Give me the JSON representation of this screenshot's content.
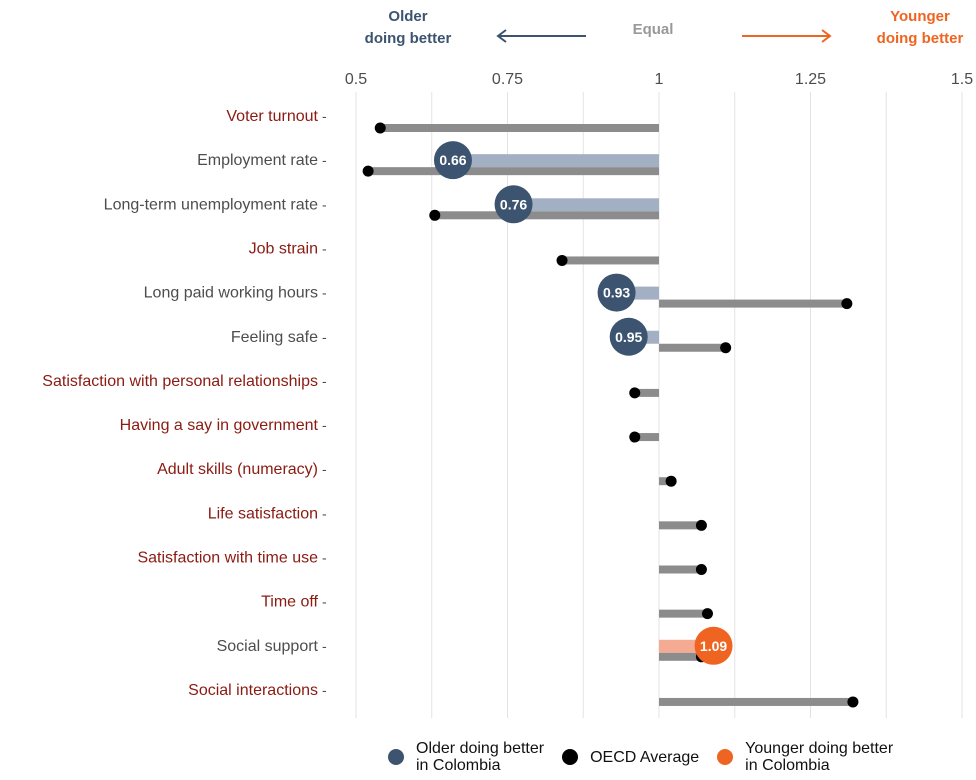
{
  "header": {
    "older_line1": "Older",
    "older_line2": "doing better",
    "equal": "Equal",
    "younger_line1": "Younger",
    "younger_line2": "doing better"
  },
  "colors": {
    "older": "#3c5470",
    "older_bar": "#a3afc2",
    "younger": "#ef6420",
    "younger_bar": "#f5ab93",
    "oecd": "#000000",
    "oecd_bar": "#8c8c8c",
    "label_highlight": "#8b1a12",
    "label_normal": "#4d4d4d",
    "equal_text": "#999999"
  },
  "legend": {
    "older_line1": "Older doing better",
    "older_line2": "in Colombia",
    "oecd": "OECD Average",
    "younger_line1": "Younger doing better",
    "younger_line2": "in Colombia"
  },
  "chart_data": {
    "type": "bar",
    "x_ticks": [
      "0.5",
      "0.75",
      "1",
      "1.25",
      "1.5"
    ],
    "xlim": [
      0.5,
      1.5
    ],
    "reference": 1,
    "categories": [
      "Voter turnout",
      "Employment rate",
      "Long-term  unemployment rate",
      "Job strain",
      "Long paid working hours",
      "Feeling safe",
      "Satisfaction with personal relationships",
      "Having a say in government",
      "Adult skills (numeracy)",
      "Life satisfaction",
      "Satisfaction with time use",
      "Time off",
      "Social support",
      "Social interactions"
    ],
    "highlighted": [
      true,
      false,
      false,
      true,
      false,
      false,
      true,
      true,
      true,
      true,
      true,
      true,
      false,
      true
    ],
    "series": [
      {
        "name": "Colombia",
        "values": [
          null,
          0.66,
          0.76,
          null,
          0.93,
          0.95,
          null,
          null,
          null,
          null,
          null,
          null,
          1.09,
          null
        ],
        "labels": [
          null,
          "0.66",
          "0.76",
          null,
          "0.93",
          "0.95",
          null,
          null,
          null,
          null,
          null,
          null,
          "1.09",
          null
        ]
      },
      {
        "name": "OECD Average",
        "values": [
          0.54,
          0.52,
          0.63,
          0.84,
          1.31,
          1.11,
          0.96,
          0.96,
          1.02,
          1.07,
          1.07,
          1.08,
          1.07,
          1.32
        ]
      }
    ]
  }
}
